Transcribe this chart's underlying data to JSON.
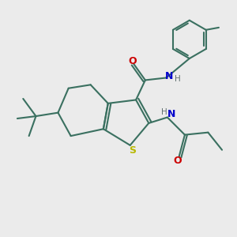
{
  "bg_color": "#EBEBEB",
  "bond_color": "#3a7060",
  "S_color": "#b8b800",
  "N_color": "#0000cc",
  "O_color": "#cc0000",
  "H_color": "#607070",
  "line_width": 1.5,
  "figsize": [
    3.0,
    3.0
  ],
  "dpi": 100,
  "xlim": [
    0,
    10
  ],
  "ylim": [
    0,
    10
  ]
}
